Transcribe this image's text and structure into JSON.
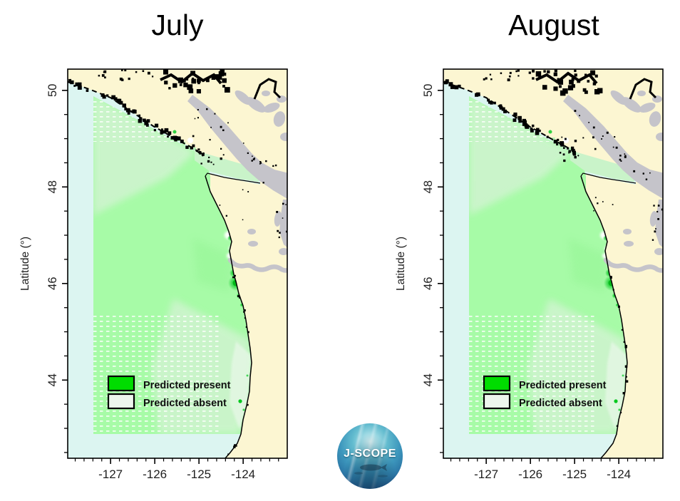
{
  "panels": [
    {
      "title": "July"
    },
    {
      "title": "August"
    }
  ],
  "axes": {
    "y_label": "Latitude (°)",
    "y_tick_labels": [
      "50",
      "48",
      "46",
      "44"
    ],
    "y_tick_values": [
      50,
      48,
      46,
      44
    ],
    "x_tick_labels": [
      "-127",
      "-126",
      "-125",
      "-124"
    ],
    "x_tick_values": [
      -127,
      -126,
      -125,
      -124
    ],
    "y_range_deg": [
      42.4,
      50.44
    ],
    "x_range_deg": [
      -127.97,
      -123.0
    ]
  },
  "legend": {
    "present_label": "Predicted present",
    "absent_label": "Predicted absent"
  },
  "logo": {
    "text": "J-SCOPE"
  },
  "colors": {
    "ocean": "#dcf5f1",
    "land": "#fcf6d2",
    "inland_water": "#c5c4ca",
    "coastline": "#000000",
    "domain_green": "#a7fba7",
    "domain_pale": "#ccf4cc",
    "domain_faint": "#e3f7e3",
    "strait_band": "#c9f3c9",
    "bright_green": "#00c81e",
    "absent_white": "#ffffff",
    "legend_present": "#00dd00",
    "legend_absent": "#edf6ed",
    "tick_text": "#1f1f1f"
  }
}
